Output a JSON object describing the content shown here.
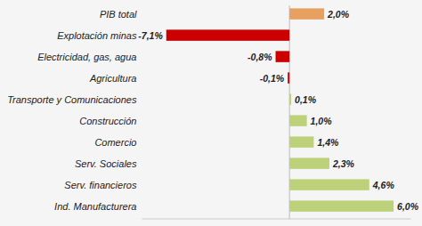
{
  "chart_data": {
    "type": "bar",
    "orientation": "horizontal",
    "categories": [
      "Ind. Manufacturera",
      "Serv. financieros",
      "Serv. Sociales",
      "Comercio",
      "Construcción",
      "Transporte y Comunicaciones",
      "Agricultura",
      "Electricidad, gas, agua",
      "Explotación minas",
      "PIB total"
    ],
    "values": [
      6.0,
      4.6,
      2.3,
      1.4,
      1.0,
      0.1,
      -0.1,
      -0.8,
      -7.1,
      2.0
    ],
    "value_labels": [
      "6,0%",
      "4,6%",
      "2,3%",
      "1,4%",
      "1,0%",
      "0,1%",
      "-0,1%",
      "-0,8%",
      "-7,1%",
      "2,0%"
    ],
    "colors": [
      "#bcd17a",
      "#bcd17a",
      "#bcd17a",
      "#bcd17a",
      "#bcd17a",
      "#bcd17a",
      "#cc0000",
      "#cc0000",
      "#cc0000",
      "#e8a060"
    ],
    "xlim": [
      -8.5,
      7.0
    ],
    "data_labels": true,
    "tick_labels": "y"
  }
}
